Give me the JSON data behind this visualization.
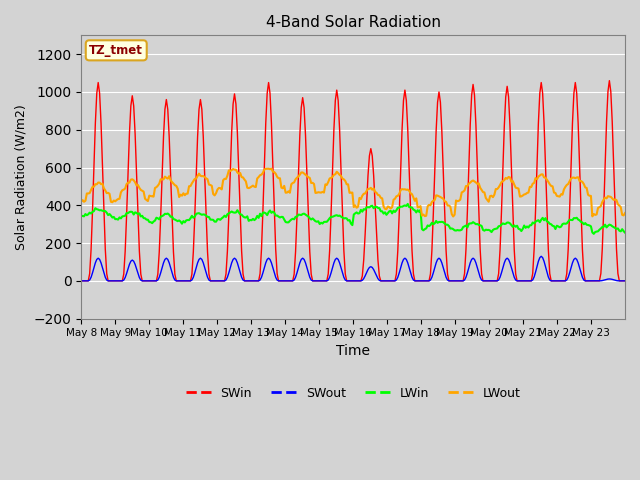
{
  "title": "4-Band Solar Radiation",
  "xlabel": "Time",
  "ylabel": "Solar Radiation (W/m2)",
  "legend_label": "TZ_tmet",
  "series": [
    "SWin",
    "SWout",
    "LWin",
    "LWout"
  ],
  "series_colors": [
    "red",
    "blue",
    "#00ff00",
    "orange"
  ],
  "ylim": [
    -200,
    1300
  ],
  "yticks": [
    -200,
    0,
    200,
    400,
    600,
    800,
    1000,
    1200
  ],
  "background_color": "#d3d3d3",
  "grid_color": "white",
  "num_days": 16,
  "xtick_labels": [
    "May 8",
    "May 9",
    "May 10",
    "May 11",
    "May 12",
    "May 13",
    "May 14",
    "May 15",
    "May 16",
    "May 17",
    "May 18",
    "May 19",
    "May 20",
    "May 21",
    "May 22",
    "May 23"
  ],
  "day_peaks_swin": [
    1050,
    980,
    960,
    960,
    990,
    1050,
    970,
    1010,
    700,
    1010,
    1000,
    1040,
    1030,
    1050,
    1050,
    1060
  ],
  "day_peaks_swout": [
    120,
    110,
    120,
    120,
    120,
    120,
    120,
    120,
    75,
    120,
    120,
    120,
    120,
    130,
    120,
    10
  ],
  "lwin_base": [
    360,
    345,
    330,
    335,
    345,
    345,
    330,
    325,
    375,
    380,
    295,
    285,
    285,
    305,
    310,
    275
  ],
  "lwout_base": [
    460,
    470,
    490,
    500,
    530,
    540,
    510,
    510,
    430,
    430,
    390,
    470,
    485,
    500,
    490,
    390
  ]
}
